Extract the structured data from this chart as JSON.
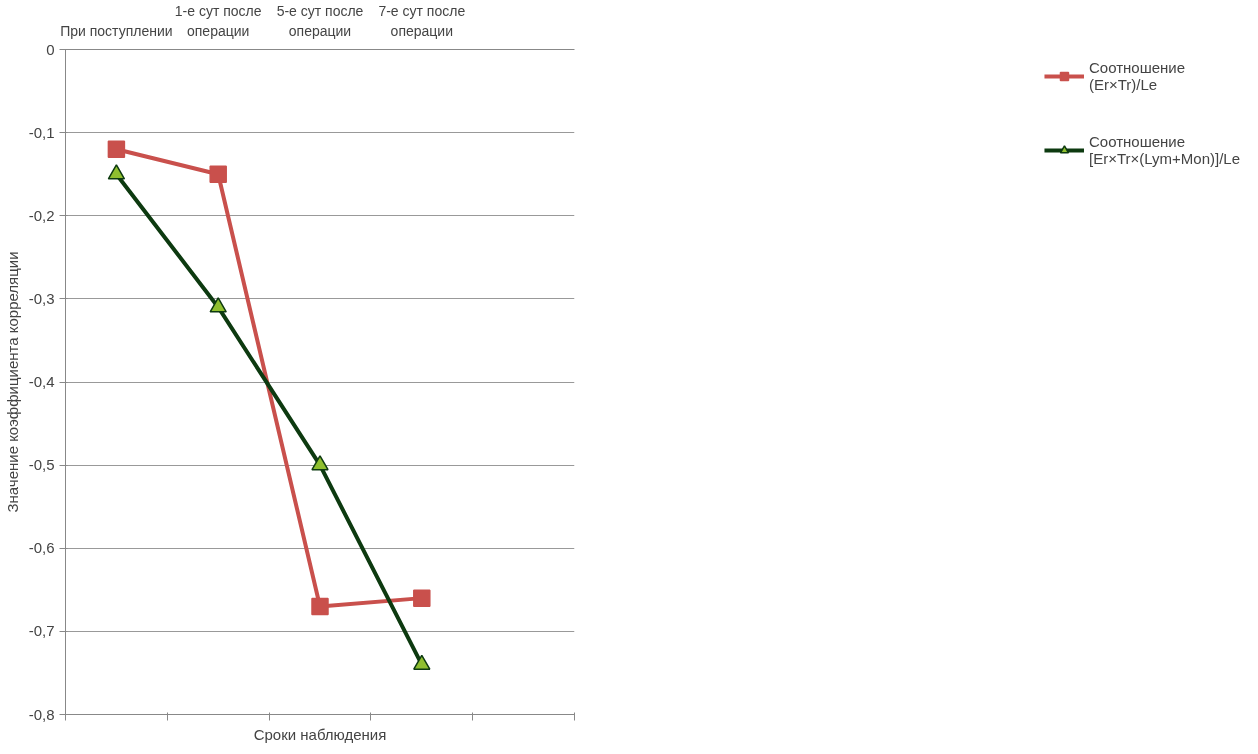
{
  "chart_data": {
    "type": "line",
    "xlabel": "Сроки наблюдения",
    "ylabel": "Значение коэффициента корреляции",
    "categories": [
      "При поступлении",
      "1-е сут после операции",
      "5-е сут после операции",
      "7-е сут после операции",
      null
    ],
    "series": [
      {
        "name": "Соотношение (Er×Tr)/Le",
        "color": "#c9504c",
        "marker": "square",
        "values": [
          -0.12,
          -0.15,
          -0.67,
          -0.66,
          null
        ]
      },
      {
        "name": "Соотношение [Er×Tr×(Lym+Mon)]/Le",
        "color": "#0d3a10",
        "marker": "triangle",
        "values": [
          -0.15,
          -0.31,
          -0.5,
          -0.74,
          null
        ]
      }
    ],
    "ylim": [
      -0.8,
      0
    ],
    "yticks": [
      {
        "value": 0,
        "label": "0"
      },
      {
        "value": -0.1,
        "label": "-0,1"
      },
      {
        "value": -0.2,
        "label": "-0,2"
      },
      {
        "value": -0.3,
        "label": "-0,3"
      },
      {
        "value": -0.4,
        "label": "-0,4"
      },
      {
        "value": -0.5,
        "label": "-0,5"
      },
      {
        "value": -0.6,
        "label": "-0,6"
      },
      {
        "value": -0.7,
        "label": "-0,7"
      },
      {
        "value": -0.8,
        "label": "-0,8"
      }
    ],
    "grid": "y",
    "legend": "right",
    "line_style": "solid"
  }
}
